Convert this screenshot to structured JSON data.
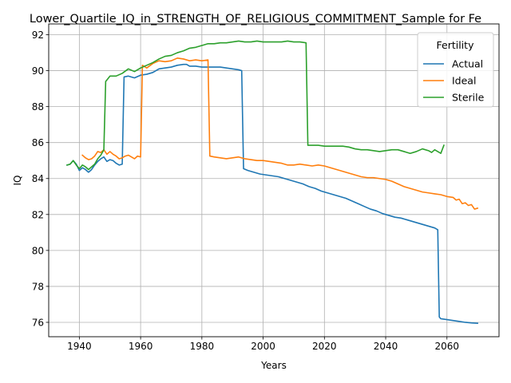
{
  "chart_data": {
    "type": "line",
    "title": "Lower_Quartile_IQ_in_STRENGTH_OF_RELIGIOUS_COMMITMENT_Sample for Fe",
    "xlabel": "Years",
    "ylabel": "IQ",
    "xlim": [
      1930,
      2077
    ],
    "ylim": [
      75.2,
      92.6
    ],
    "xticks": [
      1940,
      1960,
      1980,
      2000,
      2020,
      2040,
      2060
    ],
    "yticks": [
      76,
      78,
      80,
      82,
      84,
      86,
      88,
      90,
      92
    ],
    "grid": true,
    "legend": {
      "title": "Fertility",
      "position": "top-right"
    },
    "series": [
      {
        "name": "Actual",
        "color": "#1f77b4",
        "points": [
          [
            1936,
            84.75
          ],
          [
            1937,
            84.8
          ],
          [
            1938,
            85.0
          ],
          [
            1939,
            84.8
          ],
          [
            1940,
            84.45
          ],
          [
            1941,
            84.6
          ],
          [
            1942,
            84.5
          ],
          [
            1943,
            84.35
          ],
          [
            1944,
            84.5
          ],
          [
            1945,
            84.75
          ],
          [
            1946,
            84.95
          ],
          [
            1947,
            85.1
          ],
          [
            1948,
            85.2
          ],
          [
            1949,
            84.95
          ],
          [
            1950,
            85.05
          ],
          [
            1951,
            85.0
          ],
          [
            1952,
            84.85
          ],
          [
            1953,
            84.75
          ],
          [
            1954,
            84.8
          ],
          [
            1954.6,
            89.65
          ],
          [
            1956,
            89.7
          ],
          [
            1958,
            89.6
          ],
          [
            1960,
            89.75
          ],
          [
            1962,
            89.8
          ],
          [
            1964,
            89.9
          ],
          [
            1966,
            90.1
          ],
          [
            1968,
            90.15
          ],
          [
            1970,
            90.2
          ],
          [
            1972,
            90.3
          ],
          [
            1974,
            90.35
          ],
          [
            1975,
            90.35
          ],
          [
            1976,
            90.25
          ],
          [
            1978,
            90.25
          ],
          [
            1980,
            90.2
          ],
          [
            1982,
            90.2
          ],
          [
            1984,
            90.2
          ],
          [
            1986,
            90.2
          ],
          [
            1988,
            90.15
          ],
          [
            1990,
            90.1
          ],
          [
            1992,
            90.05
          ],
          [
            1993,
            90.0
          ],
          [
            1993.6,
            84.55
          ],
          [
            1995,
            84.45
          ],
          [
            1997,
            84.35
          ],
          [
            1999,
            84.25
          ],
          [
            2001,
            84.2
          ],
          [
            2003,
            84.15
          ],
          [
            2005,
            84.1
          ],
          [
            2007,
            84.0
          ],
          [
            2009,
            83.9
          ],
          [
            2011,
            83.8
          ],
          [
            2013,
            83.7
          ],
          [
            2015,
            83.55
          ],
          [
            2017,
            83.45
          ],
          [
            2019,
            83.3
          ],
          [
            2021,
            83.2
          ],
          [
            2023,
            83.1
          ],
          [
            2025,
            83.0
          ],
          [
            2027,
            82.9
          ],
          [
            2029,
            82.75
          ],
          [
            2031,
            82.6
          ],
          [
            2033,
            82.45
          ],
          [
            2035,
            82.3
          ],
          [
            2037,
            82.2
          ],
          [
            2039,
            82.05
          ],
          [
            2041,
            81.95
          ],
          [
            2043,
            81.85
          ],
          [
            2045,
            81.8
          ],
          [
            2047,
            81.7
          ],
          [
            2049,
            81.6
          ],
          [
            2051,
            81.5
          ],
          [
            2053,
            81.4
          ],
          [
            2055,
            81.3
          ],
          [
            2056,
            81.25
          ],
          [
            2057,
            81.15
          ],
          [
            2057.5,
            76.3
          ],
          [
            2058,
            76.2
          ],
          [
            2060,
            76.15
          ],
          [
            2062,
            76.1
          ],
          [
            2064,
            76.05
          ],
          [
            2066,
            76.0
          ],
          [
            2068,
            75.97
          ],
          [
            2070,
            75.95
          ]
        ]
      },
      {
        "name": "Ideal",
        "color": "#ff7f0e",
        "points": [
          [
            1941,
            85.3
          ],
          [
            1942,
            85.15
          ],
          [
            1943,
            85.05
          ],
          [
            1944,
            85.1
          ],
          [
            1945,
            85.25
          ],
          [
            1946,
            85.5
          ],
          [
            1947,
            85.45
          ],
          [
            1948,
            85.6
          ],
          [
            1949,
            85.35
          ],
          [
            1950,
            85.5
          ],
          [
            1951,
            85.35
          ],
          [
            1952,
            85.25
          ],
          [
            1953,
            85.1
          ],
          [
            1954,
            85.15
          ],
          [
            1955,
            85.25
          ],
          [
            1956,
            85.3
          ],
          [
            1957,
            85.2
          ],
          [
            1958,
            85.1
          ],
          [
            1959,
            85.25
          ],
          [
            1960,
            85.2
          ],
          [
            1960.6,
            90.3
          ],
          [
            1962,
            90.15
          ],
          [
            1964,
            90.4
          ],
          [
            1966,
            90.55
          ],
          [
            1968,
            90.5
          ],
          [
            1970,
            90.55
          ],
          [
            1972,
            90.7
          ],
          [
            1974,
            90.65
          ],
          [
            1976,
            90.55
          ],
          [
            1978,
            90.6
          ],
          [
            1980,
            90.55
          ],
          [
            1982,
            90.6
          ],
          [
            1982.6,
            85.25
          ],
          [
            1984,
            85.2
          ],
          [
            1986,
            85.15
          ],
          [
            1988,
            85.1
          ],
          [
            1990,
            85.15
          ],
          [
            1992,
            85.2
          ],
          [
            1994,
            85.1
          ],
          [
            1996,
            85.05
          ],
          [
            1998,
            85.0
          ],
          [
            2000,
            85.0
          ],
          [
            2002,
            84.95
          ],
          [
            2004,
            84.9
          ],
          [
            2006,
            84.85
          ],
          [
            2008,
            84.75
          ],
          [
            2010,
            84.75
          ],
          [
            2012,
            84.8
          ],
          [
            2014,
            84.75
          ],
          [
            2016,
            84.7
          ],
          [
            2018,
            84.75
          ],
          [
            2020,
            84.7
          ],
          [
            2022,
            84.6
          ],
          [
            2024,
            84.5
          ],
          [
            2026,
            84.4
          ],
          [
            2028,
            84.3
          ],
          [
            2030,
            84.2
          ],
          [
            2032,
            84.1
          ],
          [
            2034,
            84.05
          ],
          [
            2036,
            84.05
          ],
          [
            2038,
            84.0
          ],
          [
            2040,
            83.95
          ],
          [
            2042,
            83.85
          ],
          [
            2044,
            83.7
          ],
          [
            2046,
            83.55
          ],
          [
            2048,
            83.45
          ],
          [
            2050,
            83.35
          ],
          [
            2052,
            83.25
          ],
          [
            2054,
            83.2
          ],
          [
            2056,
            83.15
          ],
          [
            2058,
            83.1
          ],
          [
            2060,
            83.0
          ],
          [
            2062,
            82.95
          ],
          [
            2063,
            82.8
          ],
          [
            2064,
            82.85
          ],
          [
            2065,
            82.6
          ],
          [
            2066,
            82.65
          ],
          [
            2067,
            82.5
          ],
          [
            2068,
            82.55
          ],
          [
            2069,
            82.3
          ],
          [
            2070,
            82.35
          ]
        ]
      },
      {
        "name": "Sterile",
        "color": "#2ca02c",
        "points": [
          [
            1936,
            84.75
          ],
          [
            1937,
            84.8
          ],
          [
            1938,
            85.0
          ],
          [
            1939,
            84.75
          ],
          [
            1940,
            84.55
          ],
          [
            1941,
            84.75
          ],
          [
            1942,
            84.65
          ],
          [
            1943,
            84.5
          ],
          [
            1944,
            84.65
          ],
          [
            1945,
            84.8
          ],
          [
            1946,
            85.1
          ],
          [
            1947,
            85.3
          ],
          [
            1948,
            85.6
          ],
          [
            1948.6,
            89.4
          ],
          [
            1950,
            89.7
          ],
          [
            1952,
            89.7
          ],
          [
            1954,
            89.85
          ],
          [
            1956,
            90.1
          ],
          [
            1958,
            89.95
          ],
          [
            1960,
            90.15
          ],
          [
            1962,
            90.3
          ],
          [
            1964,
            90.45
          ],
          [
            1966,
            90.65
          ],
          [
            1968,
            90.8
          ],
          [
            1970,
            90.85
          ],
          [
            1972,
            91.0
          ],
          [
            1974,
            91.1
          ],
          [
            1976,
            91.25
          ],
          [
            1978,
            91.3
          ],
          [
            1980,
            91.4
          ],
          [
            1982,
            91.5
          ],
          [
            1984,
            91.5
          ],
          [
            1986,
            91.55
          ],
          [
            1988,
            91.55
          ],
          [
            1990,
            91.6
          ],
          [
            1992,
            91.65
          ],
          [
            1994,
            91.6
          ],
          [
            1996,
            91.6
          ],
          [
            1998,
            91.65
          ],
          [
            2000,
            91.6
          ],
          [
            2002,
            91.6
          ],
          [
            2004,
            91.6
          ],
          [
            2006,
            91.6
          ],
          [
            2008,
            91.65
          ],
          [
            2010,
            91.6
          ],
          [
            2012,
            91.6
          ],
          [
            2014,
            91.55
          ],
          [
            2014.6,
            85.85
          ],
          [
            2016,
            85.85
          ],
          [
            2018,
            85.85
          ],
          [
            2020,
            85.8
          ],
          [
            2022,
            85.8
          ],
          [
            2024,
            85.8
          ],
          [
            2026,
            85.8
          ],
          [
            2028,
            85.75
          ],
          [
            2030,
            85.65
          ],
          [
            2032,
            85.6
          ],
          [
            2034,
            85.6
          ],
          [
            2036,
            85.55
          ],
          [
            2038,
            85.5
          ],
          [
            2040,
            85.55
          ],
          [
            2042,
            85.6
          ],
          [
            2044,
            85.6
          ],
          [
            2046,
            85.5
          ],
          [
            2048,
            85.4
          ],
          [
            2050,
            85.5
          ],
          [
            2052,
            85.65
          ],
          [
            2054,
            85.55
          ],
          [
            2055,
            85.45
          ],
          [
            2056,
            85.6
          ],
          [
            2057,
            85.5
          ],
          [
            2058,
            85.4
          ],
          [
            2059,
            85.85
          ]
        ]
      }
    ]
  }
}
